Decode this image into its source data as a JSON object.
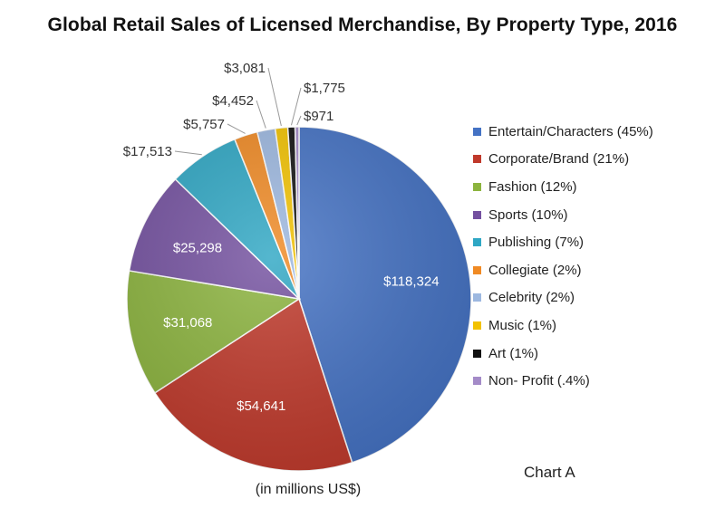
{
  "chart_data": {
    "type": "pie",
    "title": "Global Retail Sales of Licensed Merchandise, By Property Type, 2016",
    "unit_note": "(in millions US$)",
    "tag": "Chart A",
    "legend_position": "right",
    "slices": [
      {
        "label": "Entertain/Characters (45%)",
        "value": 118324,
        "value_label": "$118,324",
        "color": "#4472C4"
      },
      {
        "label": "Corporate/Brand (21%)",
        "value": 54641,
        "value_label": "$54,641",
        "color": "#C0392B"
      },
      {
        "label": "Fashion (12%)",
        "value": 31068,
        "value_label": "$31,068",
        "color": "#8CB43E"
      },
      {
        "label": "Sports (10%)",
        "value": 25298,
        "value_label": "$25,298",
        "color": "#7451A0"
      },
      {
        "label": "Publishing (7%)",
        "value": 17513,
        "value_label": "$17,513",
        "color": "#2FA7C4"
      },
      {
        "label": "Collegiate (2%)",
        "value": 5757,
        "value_label": "$5,757",
        "color": "#F08A24"
      },
      {
        "label": "Celebrity (2%)",
        "value": 4452,
        "value_label": "$4,452",
        "color": "#9DB8E0"
      },
      {
        "label": "Music (1%)",
        "value": 3081,
        "value_label": "$3,081",
        "color": "#F2C200"
      },
      {
        "label": "Art (1%)",
        "value": 1775,
        "value_label": "$1,775",
        "color": "#111111"
      },
      {
        "label": "Non- Profit (.4%)",
        "value": 971,
        "value_label": "$971",
        "color": "#A48BC8"
      }
    ]
  }
}
